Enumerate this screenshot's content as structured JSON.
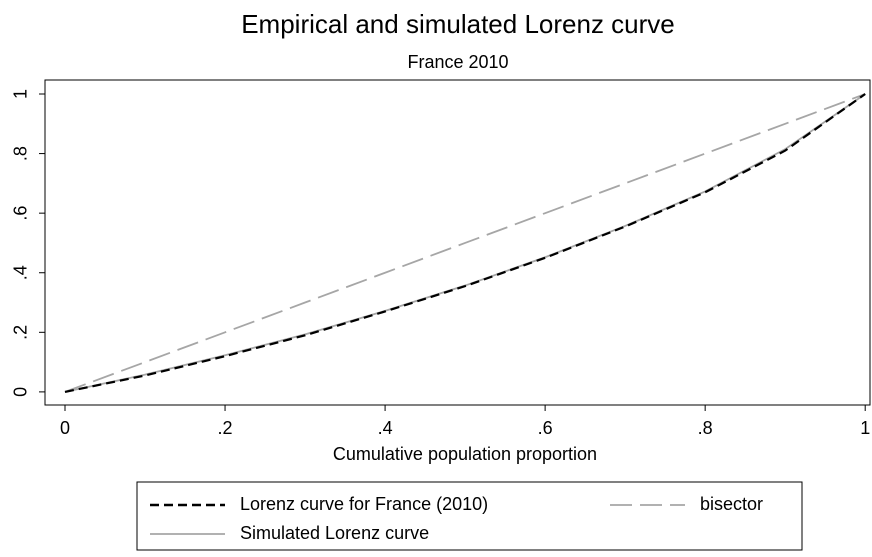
{
  "chart_data": {
    "type": "line",
    "title": "Empirical and simulated Lorenz curve",
    "subtitle": "France 2010",
    "x_label": "Cumulative population proportion",
    "x": [
      0,
      0.1,
      0.2,
      0.3,
      0.4,
      0.5,
      0.6,
      0.7,
      0.8,
      0.9,
      1
    ],
    "series": [
      {
        "name": "Lorenz curve for France (2010)",
        "color": "#000000",
        "style": "dash",
        "values": [
          0,
          0.055,
          0.12,
          0.19,
          0.27,
          0.355,
          0.45,
          0.555,
          0.67,
          0.81,
          1
        ]
      },
      {
        "name": "bisector",
        "color": "#a6a6a6",
        "style": "longdash",
        "values": [
          0,
          0.1,
          0.2,
          0.3,
          0.4,
          0.5,
          0.6,
          0.7,
          0.8,
          0.9,
          1
        ]
      },
      {
        "name": "Simulated Lorenz curve",
        "color": "#a6a6a6",
        "style": "solid",
        "values": [
          0,
          0.058,
          0.123,
          0.193,
          0.272,
          0.357,
          0.452,
          0.557,
          0.673,
          0.815,
          1
        ]
      }
    ],
    "xlim": [
      -0.025,
      1.006
    ],
    "ylim": [
      -0.044,
      1.047
    ],
    "xticks": [
      0,
      {
        "value": 0.2,
        "label": ".2"
      },
      {
        "value": 0.4,
        "label": ".4"
      },
      {
        "value": 0.6,
        "label": ".6"
      },
      {
        "value": 0.8,
        "label": ".8"
      },
      1
    ],
    "yticks": [
      0,
      {
        "value": 0.2,
        "label": ".2"
      },
      {
        "value": 0.4,
        "label": ".4"
      },
      {
        "value": 0.6,
        "label": ".6"
      },
      {
        "value": 0.8,
        "label": ".8"
      },
      1
    ],
    "grid": false,
    "legend": "bottom"
  }
}
